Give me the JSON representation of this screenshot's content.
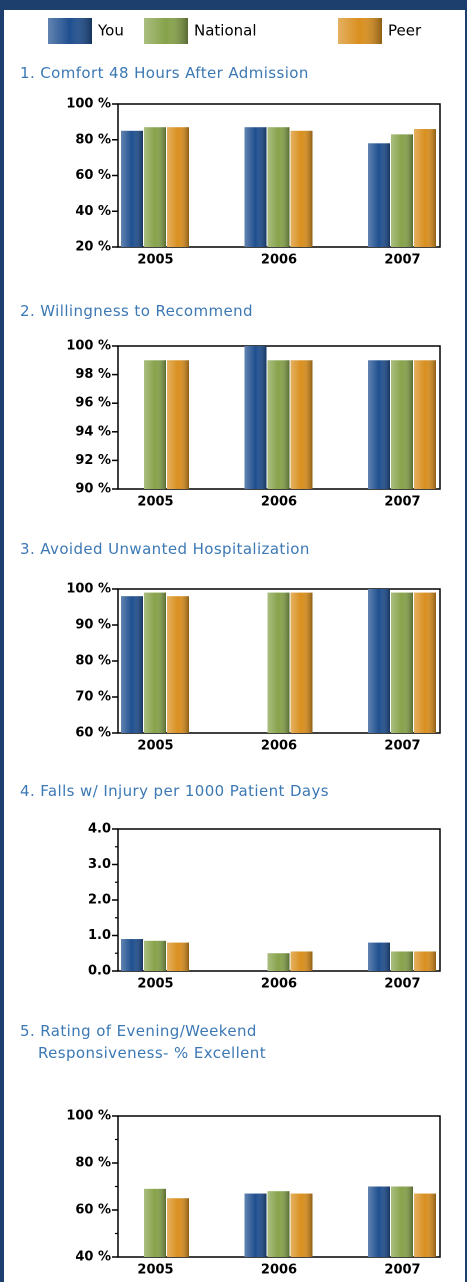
{
  "legend": {
    "series": [
      {
        "name": "You",
        "color": "#1f4f8f"
      },
      {
        "name": "National",
        "color": "#86a24a"
      },
      {
        "name": "Peer",
        "color": "#d98f1e"
      }
    ]
  },
  "chart_data": [
    {
      "type": "bar",
      "title": "1. Comfort 48 Hours After Admission",
      "categories": [
        "2005",
        "2006",
        "2007"
      ],
      "series": [
        {
          "values": [
            85,
            87,
            78
          ]
        },
        {
          "values": [
            87,
            87,
            83
          ]
        },
        {
          "values": [
            87,
            85,
            86
          ]
        }
      ],
      "ylim": [
        20,
        100
      ],
      "yticks": [
        {
          "value": 20,
          "label": "20 %"
        },
        {
          "value": 40,
          "label": "40 %"
        },
        {
          "value": 60,
          "label": "60 %"
        },
        {
          "value": 80,
          "label": "80 %"
        },
        {
          "value": 100,
          "label": "100 %"
        }
      ]
    },
    {
      "type": "bar",
      "title": "2. Willingness to Recommend",
      "categories": [
        "2005",
        "2006",
        "2007"
      ],
      "series": [
        {
          "values": [
            null,
            100,
            99
          ]
        },
        {
          "values": [
            99,
            99,
            99
          ]
        },
        {
          "values": [
            99,
            99,
            99
          ]
        }
      ],
      "ylim": [
        90,
        100
      ],
      "yticks": [
        {
          "value": 90,
          "label": "90 %"
        },
        {
          "value": 92,
          "label": "92 %"
        },
        {
          "value": 94,
          "label": "94 %"
        },
        {
          "value": 96,
          "label": "96 %"
        },
        {
          "value": 98,
          "label": "98 %"
        },
        {
          "value": 100,
          "label": "100 %"
        }
      ]
    },
    {
      "type": "bar",
      "title": "3. Avoided Unwanted Hospitalization",
      "categories": [
        "2005",
        "2006",
        "2007"
      ],
      "series": [
        {
          "values": [
            98,
            null,
            100
          ]
        },
        {
          "values": [
            99,
            99,
            99
          ]
        },
        {
          "values": [
            98,
            99,
            99
          ]
        }
      ],
      "ylim": [
        60,
        100
      ],
      "yticks": [
        {
          "value": 60,
          "label": "60 %"
        },
        {
          "value": 70,
          "label": "70 %"
        },
        {
          "value": 80,
          "label": "80 %"
        },
        {
          "value": 90,
          "label": "90 %"
        },
        {
          "value": 100,
          "label": "100 %"
        }
      ]
    },
    {
      "type": "bar",
      "title": "4. Falls w/ Injury per 1000 Patient Days",
      "categories": [
        "2005",
        "2006",
        "2007"
      ],
      "series": [
        {
          "values": [
            0.9,
            null,
            0.8
          ]
        },
        {
          "values": [
            0.85,
            0.5,
            0.55
          ]
        },
        {
          "values": [
            0.8,
            0.55,
            0.55
          ]
        }
      ],
      "ylim": [
        0,
        4
      ],
      "yticks": [
        {
          "value": 0,
          "label": "0.0"
        },
        {
          "value": 1,
          "label": "1.0"
        },
        {
          "value": 2,
          "label": "2.0"
        },
        {
          "value": 3,
          "label": "3.0"
        },
        {
          "value": 4,
          "label": "4.0"
        }
      ],
      "minor_yticks": [
        0.5,
        1.5,
        2.5,
        3.5
      ]
    },
    {
      "type": "bar",
      "title": "5. Rating of Evening/Weekend Responsiveness- % Excellent",
      "categories": [
        "2005",
        "2006",
        "2007"
      ],
      "series": [
        {
          "values": [
            null,
            67,
            70
          ]
        },
        {
          "values": [
            69,
            68,
            70
          ]
        },
        {
          "values": [
            65,
            67,
            67
          ]
        }
      ],
      "ylim": [
        40,
        100
      ],
      "yticks": [
        {
          "value": 40,
          "label": "40 %"
        },
        {
          "value": 60,
          "label": "60 %"
        },
        {
          "value": 80,
          "label": "80 %"
        },
        {
          "value": 100,
          "label": "100 %"
        }
      ],
      "minor_yticks": [
        50,
        70,
        90
      ]
    }
  ]
}
